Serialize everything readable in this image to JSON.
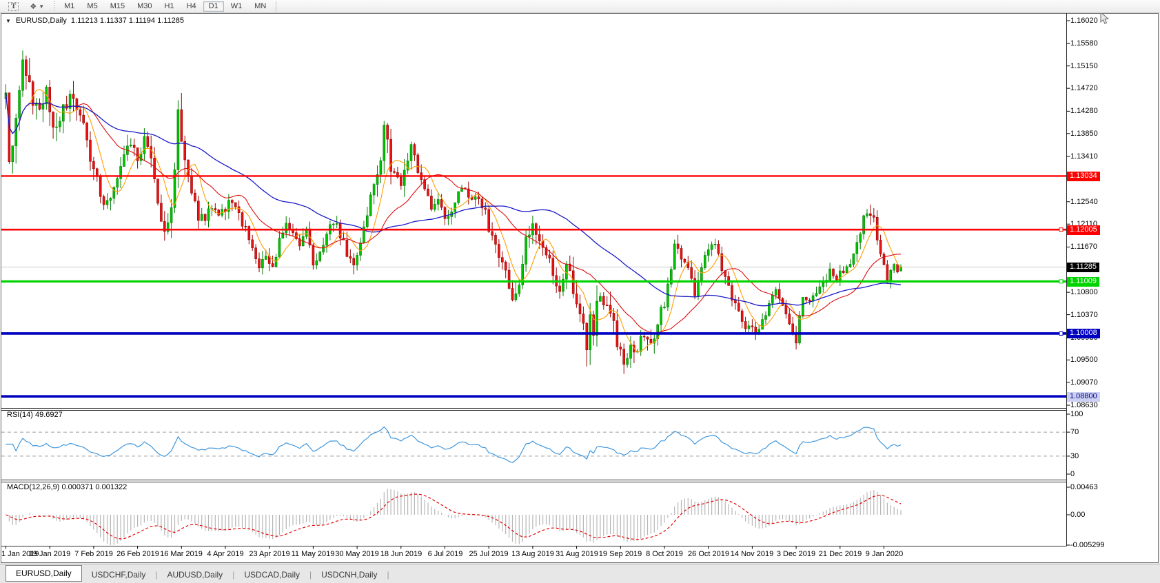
{
  "toolbar": {
    "text_tool": "T",
    "cursor_tool_glyph": "❖",
    "timeframes": [
      "M1",
      "M5",
      "M15",
      "M30",
      "H1",
      "H4",
      "D1",
      "W1",
      "MN"
    ],
    "active_timeframe": "D1"
  },
  "chart": {
    "title": {
      "dropdown_glyph": "▼",
      "symbol_period": "EURUSD,Daily",
      "ohlc": "1.11213 1.11337 1.11194 1.11285"
    }
  },
  "price_axis": {
    "ticks": [
      "1.16020",
      "1.15580",
      "1.15150",
      "1.14720",
      "1.14280",
      "1.13850",
      "1.13410",
      "1.12980",
      "1.12540",
      "1.12110",
      "1.11670",
      "1.11240",
      "1.10800",
      "1.10370",
      "1.09930",
      "1.09500",
      "1.09070",
      "1.08630"
    ]
  },
  "hlines": [
    {
      "price": 1.13034,
      "label": "1.13034",
      "color": "#fd0000",
      "width": 2.4,
      "label_bg": "#fd0000",
      "label_fg": "#ffffff",
      "handle": false
    },
    {
      "price": 1.12005,
      "label": "1.12005",
      "color": "#fd0000",
      "width": 2.6,
      "label_bg": "#fd0000",
      "label_fg": "#ffffff",
      "handle": true
    },
    {
      "price": 1.11009,
      "label": "1.11009",
      "color": "#00d400",
      "width": 3.2,
      "label_bg": "#00d400",
      "label_fg": "#ffffff",
      "handle": true
    },
    {
      "price": 1.10008,
      "label": "1.10008",
      "color": "#0000c0",
      "width": 3.6,
      "label_bg": "#0000c0",
      "label_fg": "#ffffff",
      "handle": true
    },
    {
      "price": 1.088,
      "label": "1.08800",
      "color": "#0000c0",
      "width": 3.6,
      "label_bg": "#ccd0f2",
      "label_fg": "#000080",
      "handle": false
    }
  ],
  "current_price": {
    "value": 1.11285,
    "label": "1.11285",
    "line_color": "#c8c8c8",
    "label_bg": "#000000",
    "label_fg": "#ffffff"
  },
  "indicators": {
    "rsi": {
      "label": "RSI(14) 49.6927",
      "period": 14,
      "current": 49.6927,
      "ticks": [
        {
          "text": "100",
          "value": 100
        },
        {
          "text": "70",
          "value": 70
        },
        {
          "text": "30",
          "value": 30
        },
        {
          "text": "0",
          "value": 0
        }
      ],
      "dashed_levels": [
        70,
        30
      ],
      "color": "#3f97dd"
    },
    "macd": {
      "label": "MACD(12,26,9) 0.000371 0.001322",
      "fast": 12,
      "slow": 26,
      "signal": 9,
      "current_macd": 0.000371,
      "current_signal": 0.001322,
      "ticks": [
        {
          "text": "0.00463",
          "value": 0.00463
        },
        {
          "text": "0.00",
          "value": 0
        },
        {
          "text": "-0.005299",
          "value": -0.005299
        }
      ],
      "hist_color": "#b6b6b6",
      "signal_color": "#e60000"
    }
  },
  "date_axis": {
    "labels": [
      {
        "text": "1 Jan 2019",
        "index": 0
      },
      {
        "text": "19 Jan 2019",
        "index": 13
      },
      {
        "text": "7 Feb 2019",
        "index": 26
      },
      {
        "text": "26 Feb 2019",
        "index": 39
      },
      {
        "text": "16 Mar 2019",
        "index": 52
      },
      {
        "text": "4 Apr 2019",
        "index": 65
      },
      {
        "text": "23 Apr 2019",
        "index": 78
      },
      {
        "text": "11 May 2019",
        "index": 91
      },
      {
        "text": "30 May 2019",
        "index": 104
      },
      {
        "text": "18 Jun 2019",
        "index": 117
      },
      {
        "text": "6 Jul 2019",
        "index": 130
      },
      {
        "text": "25 Jul 2019",
        "index": 143
      },
      {
        "text": "13 Aug 2019",
        "index": 156
      },
      {
        "text": "31 Aug 2019",
        "index": 169
      },
      {
        "text": "19 Sep 2019",
        "index": 182
      },
      {
        "text": "8 Oct 2019",
        "index": 195
      },
      {
        "text": "26 Oct 2019",
        "index": 208
      },
      {
        "text": "14 Nov 2019",
        "index": 221
      },
      {
        "text": "3 Dec 2019",
        "index": 234
      },
      {
        "text": "21 Dec 2019",
        "index": 247
      },
      {
        "text": "9 Jan 2020",
        "index": 260
      }
    ]
  },
  "tabs": {
    "items": [
      "EURUSD,Daily",
      "USDCHF,Daily",
      "AUDUSD,Daily",
      "USDCAD,Daily",
      "USDCNH,Daily"
    ],
    "active": "EURUSD,Daily"
  },
  "chart_data": {
    "type": "candlestick",
    "symbol": "EURUSD",
    "period": "Daily",
    "bars": 266,
    "visible_price_range": [
      1.0863,
      1.1602
    ],
    "current_bar_ohlc": {
      "open": 1.11213,
      "high": 1.11337,
      "low": 1.11194,
      "close": 1.11285
    },
    "up_color": "#00c400",
    "up_border": "#007d00",
    "down_color": "#e61414",
    "down_border": "#9c0000",
    "moving_averages": [
      {
        "period": 7,
        "color": "#ff9e00"
      },
      {
        "period": 21,
        "color": "#dd0d0d"
      },
      {
        "period": 55,
        "color": "#1a1ac8"
      }
    ],
    "price_anchors": [
      [
        0,
        1.1455
      ],
      [
        1,
        1.135
      ],
      [
        3,
        1.14
      ],
      [
        5,
        1.154
      ],
      [
        6,
        1.1495
      ],
      [
        8,
        1.1455
      ],
      [
        10,
        1.1435
      ],
      [
        12,
        1.1468
      ],
      [
        14,
        1.139
      ],
      [
        16,
        1.1418
      ],
      [
        19,
        1.1462
      ],
      [
        21,
        1.144
      ],
      [
        23,
        1.1398
      ],
      [
        25,
        1.133
      ],
      [
        27,
        1.1288
      ],
      [
        29,
        1.1245
      ],
      [
        31,
        1.127
      ],
      [
        33,
        1.1305
      ],
      [
        36,
        1.1362
      ],
      [
        39,
        1.1338
      ],
      [
        41,
        1.1368
      ],
      [
        43,
        1.133
      ],
      [
        45,
        1.1258
      ],
      [
        47,
        1.1198
      ],
      [
        49,
        1.1245
      ],
      [
        51,
        1.1418
      ],
      [
        53,
        1.1328
      ],
      [
        55,
        1.1278
      ],
      [
        57,
        1.1228
      ],
      [
        59,
        1.1218
      ],
      [
        61,
        1.1248
      ],
      [
        63,
        1.1224
      ],
      [
        65,
        1.124
      ],
      [
        67,
        1.126
      ],
      [
        69,
        1.1228
      ],
      [
        71,
        1.1205
      ],
      [
        73,
        1.1168
      ],
      [
        75,
        1.1135
      ],
      [
        77,
        1.1155
      ],
      [
        79,
        1.1125
      ],
      [
        81,
        1.1175
      ],
      [
        83,
        1.1208
      ],
      [
        85,
        1.1188
      ],
      [
        87,
        1.1168
      ],
      [
        89,
        1.1208
      ],
      [
        91,
        1.1135
      ],
      [
        93,
        1.1158
      ],
      [
        95,
        1.1198
      ],
      [
        97,
        1.1218
      ],
      [
        99,
        1.1188
      ],
      [
        101,
        1.1158
      ],
      [
        103,
        1.1128
      ],
      [
        105,
        1.1168
      ],
      [
        107,
        1.1228
      ],
      [
        109,
        1.1288
      ],
      [
        111,
        1.1338
      ],
      [
        112,
        1.1398
      ],
      [
        114,
        1.1328
      ],
      [
        116,
        1.1288
      ],
      [
        118,
        1.1308
      ],
      [
        120,
        1.1355
      ],
      [
        122,
        1.1318
      ],
      [
        124,
        1.1288
      ],
      [
        126,
        1.1248
      ],
      [
        128,
        1.1268
      ],
      [
        130,
        1.1222
      ],
      [
        132,
        1.1238
      ],
      [
        134,
        1.1268
      ],
      [
        136,
        1.1278
      ],
      [
        138,
        1.1252
      ],
      [
        140,
        1.1268
      ],
      [
        142,
        1.1238
      ],
      [
        144,
        1.1178
      ],
      [
        146,
        1.1148
      ],
      [
        148,
        1.1118
      ],
      [
        150,
        1.1058
      ],
      [
        152,
        1.1088
      ],
      [
        154,
        1.1178
      ],
      [
        156,
        1.1212
      ],
      [
        158,
        1.1178
      ],
      [
        160,
        1.1158
      ],
      [
        162,
        1.1118
      ],
      [
        164,
        1.1088
      ],
      [
        166,
        1.1138
      ],
      [
        168,
        1.1088
      ],
      [
        170,
        1.1028
      ],
      [
        172,
        1.0988
      ],
      [
        173,
        1.1048
      ],
      [
        174,
        1.0988
      ],
      [
        175,
        1.1058
      ],
      [
        177,
        1.1072
      ],
      [
        179,
        1.1038
      ],
      [
        181,
        1.0988
      ],
      [
        183,
        1.0938
      ],
      [
        185,
        1.0988
      ],
      [
        187,
        1.0968
      ],
      [
        189,
        1.0998
      ],
      [
        191,
        1.0982
      ],
      [
        193,
        1.1022
      ],
      [
        195,
        1.1058
      ],
      [
        197,
        1.1128
      ],
      [
        198,
        1.1172
      ],
      [
        200,
        1.1148
      ],
      [
        202,
        1.1118
      ],
      [
        204,
        1.1082
      ],
      [
        206,
        1.1118
      ],
      [
        208,
        1.1168
      ],
      [
        210,
        1.1172
      ],
      [
        212,
        1.1128
      ],
      [
        214,
        1.1088
      ],
      [
        216,
        1.1058
      ],
      [
        218,
        1.1028
      ],
      [
        220,
        1.1008
      ],
      [
        222,
        1.1002
      ],
      [
        224,
        1.1028
      ],
      [
        226,
        1.1058
      ],
      [
        228,
        1.1082
      ],
      [
        230,
        1.1048
      ],
      [
        232,
        1.1018
      ],
      [
        234,
        1.0992
      ],
      [
        236,
        1.1078
      ],
      [
        238,
        1.1068
      ],
      [
        240,
        1.1082
      ],
      [
        242,
        1.1102
      ],
      [
        244,
        1.1118
      ],
      [
        246,
        1.1108
      ],
      [
        248,
        1.1122
      ],
      [
        250,
        1.1138
      ],
      [
        252,
        1.1178
      ],
      [
        254,
        1.1218
      ],
      [
        256,
        1.1238
      ],
      [
        257,
        1.1222
      ],
      [
        258,
        1.1188
      ],
      [
        259,
        1.1158
      ],
      [
        260,
        1.1128
      ],
      [
        261,
        1.1102
      ],
      [
        262,
        1.1128
      ],
      [
        263,
        1.1142
      ],
      [
        264,
        1.1118
      ],
      [
        265,
        1.11285
      ]
    ],
    "volatility_anchors": [
      [
        0,
        1.6
      ],
      [
        6,
        1.7
      ],
      [
        12,
        1.4
      ],
      [
        25,
        1.2
      ],
      [
        40,
        1.0
      ],
      [
        47,
        1.3
      ],
      [
        51,
        1.7
      ],
      [
        57,
        0.9
      ],
      [
        70,
        0.8
      ],
      [
        85,
        0.8
      ],
      [
        100,
        0.8
      ],
      [
        108,
        1.0
      ],
      [
        112,
        1.4
      ],
      [
        120,
        0.9
      ],
      [
        135,
        0.7
      ],
      [
        146,
        1.1
      ],
      [
        152,
        1.2
      ],
      [
        160,
        0.8
      ],
      [
        173,
        1.6
      ],
      [
        183,
        1.1
      ],
      [
        195,
        1.0
      ],
      [
        205,
        0.8
      ],
      [
        220,
        0.7
      ],
      [
        235,
        0.8
      ],
      [
        248,
        0.6
      ],
      [
        256,
        0.9
      ],
      [
        261,
        0.9
      ],
      [
        265,
        0.6
      ]
    ]
  }
}
